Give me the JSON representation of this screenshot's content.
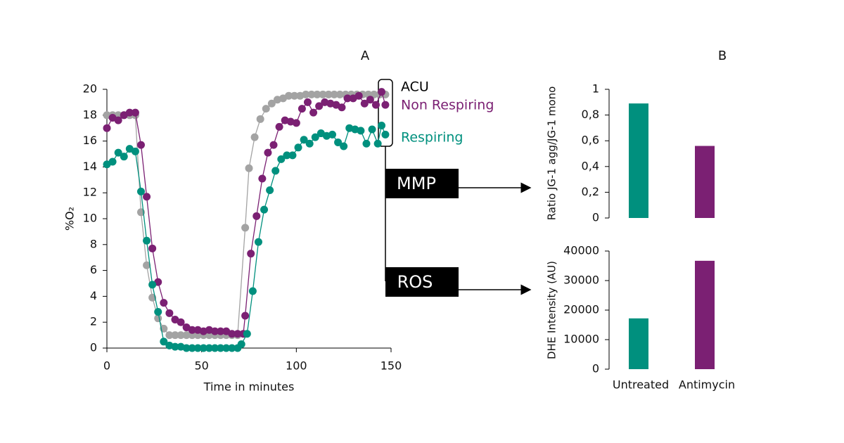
{
  "chart_data": [
    {
      "type": "line",
      "title": "A",
      "x_label": "Time in minutes",
      "y_label": "%O₂",
      "xlim": [
        0,
        150
      ],
      "xticks": [
        0,
        50,
        100,
        150
      ],
      "ylim": [
        0,
        20
      ],
      "yticks": [
        0,
        2,
        4,
        6,
        8,
        10,
        12,
        14,
        16,
        18,
        20
      ],
      "annotations": [
        "MMP",
        "ROS"
      ],
      "series": [
        {
          "name": "ACU",
          "color": "#a3a3a3",
          "x": [
            0,
            3,
            6,
            9,
            12,
            15,
            18,
            21,
            24,
            27,
            30,
            33,
            36,
            39,
            42,
            45,
            48,
            51,
            54,
            57,
            60,
            63,
            66,
            69,
            73,
            75,
            78,
            81,
            84,
            87,
            90,
            93,
            96,
            99,
            102,
            105,
            108,
            111,
            114,
            117,
            120,
            123,
            126,
            129,
            132,
            135,
            138,
            141,
            144,
            147
          ],
          "values": [
            18,
            18,
            18,
            18,
            18,
            18,
            10.5,
            6.4,
            3.9,
            2.3,
            1.5,
            1,
            1,
            1,
            1,
            1,
            1,
            1,
            1,
            1,
            1,
            1,
            1,
            1,
            9.3,
            13.9,
            16.3,
            17.7,
            18.5,
            18.9,
            19.2,
            19.3,
            19.5,
            19.5,
            19.5,
            19.6,
            19.6,
            19.6,
            19.6,
            19.6,
            19.6,
            19.6,
            19.6,
            19.6,
            19.6,
            19.6,
            19.6,
            19.6,
            19.6,
            19.6
          ]
        },
        {
          "name": "Non Respiring",
          "color": "#7b2073",
          "x": [
            0,
            3,
            6,
            9,
            12,
            15,
            18,
            21,
            24,
            27,
            30,
            33,
            36,
            39,
            42,
            45,
            48,
            51,
            54,
            57,
            60,
            63,
            66,
            69,
            72,
            73,
            76,
            79,
            82,
            85,
            88,
            91,
            94,
            97,
            100,
            103,
            106,
            109,
            112,
            115,
            118,
            121,
            124,
            127,
            130,
            133,
            136,
            139,
            142,
            145,
            147
          ],
          "values": [
            17,
            17.8,
            17.6,
            18,
            18.2,
            18.2,
            15.7,
            11.7,
            7.7,
            5.1,
            3.5,
            2.7,
            2.2,
            2,
            1.6,
            1.4,
            1.4,
            1.3,
            1.4,
            1.3,
            1.3,
            1.3,
            1.1,
            1.1,
            1.1,
            2.5,
            7.3,
            10.2,
            13.1,
            15.1,
            15.7,
            17.1,
            17.6,
            17.5,
            17.4,
            18.5,
            19,
            18.2,
            18.7,
            19,
            18.9,
            18.8,
            18.6,
            19.3,
            19.3,
            19.5,
            18.9,
            19.2,
            18.8,
            19.8,
            18.8
          ]
        },
        {
          "name": "Respiring",
          "color": "#00907e",
          "x": [
            0,
            3,
            6,
            9,
            12,
            15,
            18,
            21,
            24,
            27,
            30,
            33,
            36,
            39,
            42,
            45,
            48,
            51,
            54,
            57,
            60,
            63,
            66,
            69,
            71,
            74,
            77,
            80,
            83,
            86,
            89,
            92,
            95,
            98,
            101,
            104,
            107,
            110,
            113,
            116,
            119,
            122,
            125,
            128,
            131,
            134,
            137,
            140,
            143,
            145,
            147
          ],
          "values": [
            14.2,
            14.4,
            15.1,
            14.8,
            15.4,
            15.2,
            12.1,
            8.3,
            4.9,
            2.8,
            0.5,
            0.2,
            0.1,
            0.1,
            0,
            0,
            0,
            0,
            0,
            0,
            0,
            0,
            0,
            0,
            0.3,
            1.1,
            4.4,
            8.2,
            10.7,
            12.2,
            13.7,
            14.6,
            14.9,
            14.9,
            15.5,
            16.1,
            15.8,
            16.3,
            16.6,
            16.4,
            16.5,
            15.9,
            15.6,
            17,
            16.9,
            16.8,
            15.8,
            16.9,
            15.8,
            17.2,
            16.5
          ]
        }
      ]
    },
    {
      "type": "bar",
      "title": "B",
      "y_label": "Ratio JG-1 agg/JG-1 mono",
      "values": [
        0.89,
        0.56
      ],
      "colors": [
        "#00907e",
        "#7b2073"
      ],
      "ylim": [
        0,
        1
      ],
      "yticks": [
        0,
        {
          "value": 0.2,
          "label": "0,2"
        },
        {
          "value": 0.4,
          "label": "0,4"
        },
        {
          "value": 0.6,
          "label": "0,6"
        },
        {
          "value": 0.8,
          "label": "0,8"
        },
        1
      ]
    },
    {
      "type": "bar",
      "y_label": "DHE Intensity (AU)",
      "categories": [
        "Untreated",
        "Antimycin"
      ],
      "values": [
        17200,
        36700
      ],
      "colors": [
        "#00907e",
        "#7b2073"
      ],
      "ylim": [
        0,
        40000
      ],
      "yticks": [
        0,
        10000,
        20000,
        30000,
        40000
      ]
    }
  ]
}
